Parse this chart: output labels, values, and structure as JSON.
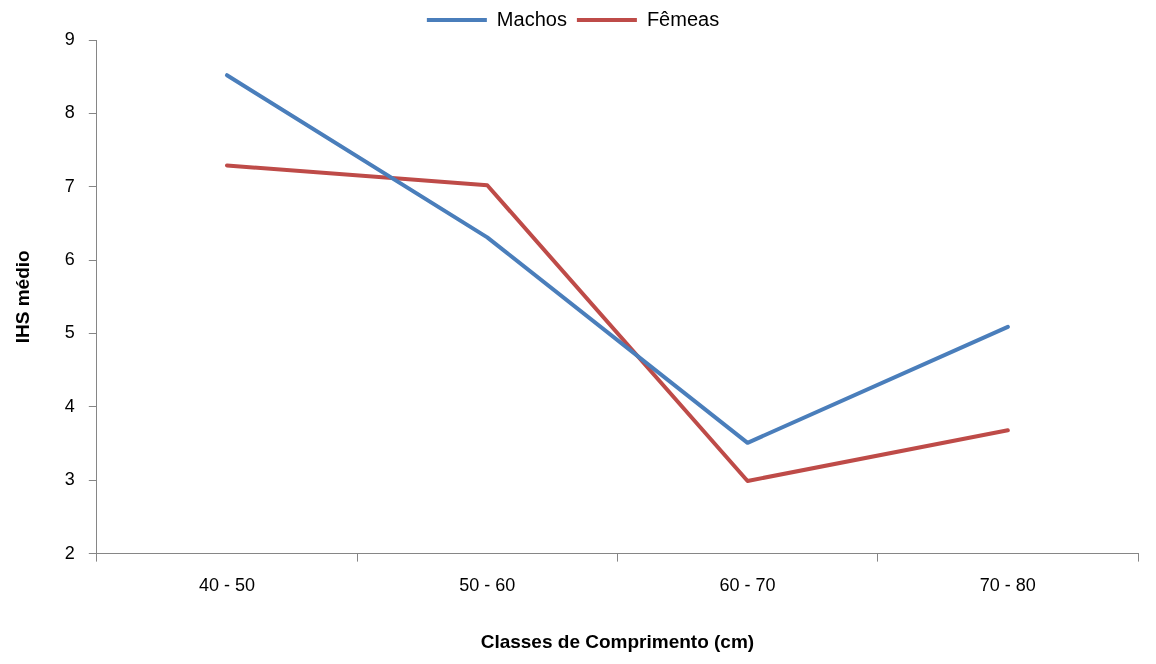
{
  "chart_data": {
    "type": "line",
    "xlabel": "Classes de Comprimento (cm)",
    "ylabel": "IHS médio",
    "categories": [
      "40 - 50",
      "50 - 60",
      "60 - 70",
      "70 - 80"
    ],
    "series": [
      {
        "name": "Machos",
        "color": "#4a7ebb",
        "values": [
          8.52,
          6.31,
          3.51,
          5.09
        ]
      },
      {
        "name": "Fêmeas",
        "color": "#be4b48",
        "values": [
          7.29,
          7.02,
          2.99,
          3.68
        ]
      }
    ],
    "ylim": [
      2,
      9
    ],
    "yticks": [
      2,
      3,
      4,
      5,
      6,
      7,
      8,
      9
    ],
    "grid": false,
    "legend": "top",
    "marker": "none",
    "line_style": "solid"
  }
}
